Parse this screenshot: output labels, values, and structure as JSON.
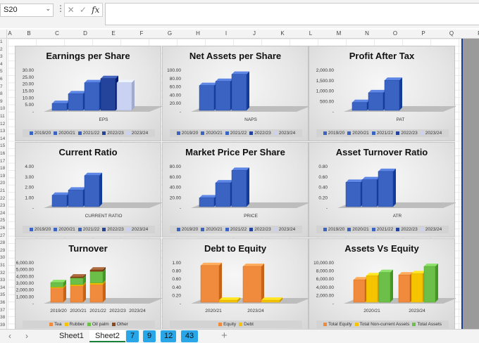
{
  "formula_bar": {
    "name_box": "S20",
    "icons": [
      "cancel-icon",
      "enter-icon",
      "function-icon"
    ]
  },
  "columns": [
    "A",
    "B",
    "C",
    "D",
    "E",
    "F",
    "G",
    "H",
    "I",
    "J",
    "K",
    "L",
    "M",
    "N",
    "O",
    "P",
    "Q",
    "R"
  ],
  "rows": [
    "1",
    "2",
    "3",
    "4",
    "5",
    "6",
    "7",
    "8",
    "9",
    "10",
    "11",
    "12",
    "13",
    "14",
    "15",
    "16",
    "17",
    "18",
    "19",
    "20",
    "21",
    "22",
    "23",
    "24",
    "25",
    "26",
    "27",
    "28",
    "29",
    "30",
    "31",
    "32",
    "33",
    "34",
    "35",
    "36",
    "37",
    "38",
    "39"
  ],
  "tabs": {
    "sheets": [
      "Sheet1",
      "Sheet2"
    ],
    "active": "Sheet2",
    "colored": [
      "7",
      "9",
      "12",
      "43"
    ]
  },
  "colors": {
    "blue": "#3a63c2",
    "blue_dark": "#24449c",
    "blue_light": "#c9d2f2",
    "orange": "#f08a3c",
    "yellow": "#f5c300",
    "green": "#6cc04a",
    "brown": "#8c4a1e"
  },
  "chart_data": [
    {
      "type": "bar",
      "title": "Earnings per Share",
      "category": "EPS",
      "ticks": [
        "30.00",
        "25.00",
        "20.00",
        "15.00",
        "10.00",
        "5.00",
        "-"
      ],
      "ylim": [
        0,
        30
      ],
      "series": [
        {
          "name": "2019/20",
          "values": [
            5
          ]
        },
        {
          "name": "2020/21",
          "values": [
            12
          ]
        },
        {
          "name": "2021/22",
          "values": [
            20
          ]
        },
        {
          "name": "2022/23",
          "values": [
            23
          ]
        },
        {
          "name": "2023/24",
          "values": [
            20
          ]
        }
      ]
    },
    {
      "type": "bar",
      "title": "Net Assets per Share",
      "category": "NAPS",
      "ticks": [
        "100.00",
        "80.00",
        "60.00",
        "40.00",
        "20.00",
        "-"
      ],
      "ylim": [
        0,
        100
      ],
      "series": [
        {
          "name": "2019/20",
          "values": [
            60
          ]
        },
        {
          "name": "2020/21",
          "values": [
            70
          ]
        },
        {
          "name": "2021/22",
          "values": [
            87
          ]
        },
        {
          "name": "2022/23",
          "values": [
            0
          ]
        },
        {
          "name": "2023/24",
          "values": [
            0
          ]
        }
      ]
    },
    {
      "type": "bar",
      "title": "Profit After Tax",
      "category": "PAT",
      "ticks": [
        "2,000.00",
        "1,500.00",
        "1,000.00",
        "500.00",
        "-"
      ],
      "ylim": [
        0,
        2000
      ],
      "series": [
        {
          "name": "2019/20",
          "values": [
            380
          ]
        },
        {
          "name": "2020/21",
          "values": [
            850
          ]
        },
        {
          "name": "2021/22",
          "values": [
            1450
          ]
        },
        {
          "name": "2022/23",
          "values": [
            0
          ]
        },
        {
          "name": "2023/24",
          "values": [
            0
          ]
        }
      ]
    },
    {
      "type": "bar",
      "title": "Current Ratio",
      "category": "CURRENT RATIO",
      "ticks": [
        "4.00",
        "3.00",
        "2.00",
        "1.00",
        "-"
      ],
      "ylim": [
        0,
        4
      ],
      "series": [
        {
          "name": "2019/20",
          "values": [
            1.1
          ]
        },
        {
          "name": "2020/21",
          "values": [
            1.6
          ]
        },
        {
          "name": "2021/22",
          "values": [
            3.0
          ]
        },
        {
          "name": "2022/23",
          "values": [
            0
          ]
        },
        {
          "name": "2023/24",
          "values": [
            0
          ]
        }
      ]
    },
    {
      "type": "bar",
      "title": "Market Price Per Share",
      "category": "PRICE",
      "ticks": [
        "80.00",
        "60.00",
        "40.00",
        "20.00",
        "-"
      ],
      "ylim": [
        0,
        80
      ],
      "series": [
        {
          "name": "2019/20",
          "values": [
            17
          ]
        },
        {
          "name": "2020/21",
          "values": [
            46
          ]
        },
        {
          "name": "2021/22",
          "values": [
            70
          ]
        },
        {
          "name": "2022/23",
          "values": [
            0
          ]
        },
        {
          "name": "2023/24",
          "values": [
            0
          ]
        }
      ]
    },
    {
      "type": "bar",
      "title": "Asset Turnover Ratio",
      "category": "ATR",
      "ticks": [
        "0.80",
        "0.60",
        "0.40",
        "0.20",
        "-"
      ],
      "ylim": [
        0,
        0.8
      ],
      "series": [
        {
          "name": "2019/20",
          "values": [
            0.47
          ]
        },
        {
          "name": "2020/21",
          "values": [
            0.52
          ]
        },
        {
          "name": "2021/22",
          "values": [
            0.68
          ]
        },
        {
          "name": "2022/23",
          "values": [
            0
          ]
        },
        {
          "name": "2023/24",
          "values": [
            0
          ]
        }
      ]
    },
    {
      "type": "stacked-bar",
      "title": "Turnover",
      "categories": [
        "2019/20",
        "2020/21",
        "2021/22",
        "2022/23",
        "2023/24"
      ],
      "ticks": [
        "6,000.00",
        "5,000.00",
        "4,000.00",
        "3,000.00",
        "2,000.00",
        "1,000.00",
        "-"
      ],
      "ylim": [
        0,
        6000
      ],
      "series": [
        {
          "name": "Tea",
          "values": [
            2100,
            2400,
            2600,
            0,
            0
          ]
        },
        {
          "name": "Rubber",
          "values": [
            150,
            200,
            250,
            0,
            0
          ]
        },
        {
          "name": "Oil palm",
          "values": [
            650,
            1000,
            1700,
            0,
            0
          ]
        },
        {
          "name": "Other",
          "values": [
            0,
            120,
            200,
            0,
            0
          ]
        }
      ]
    },
    {
      "type": "bar",
      "title": "Debt to Equity",
      "categories": [
        "2020/21",
        "2023/24"
      ],
      "ticks": [
        "1.00",
        "0.80",
        "0.60",
        "0.40",
        "0.20",
        "-"
      ],
      "ylim": [
        0,
        1
      ],
      "series": [
        {
          "name": "Equity",
          "values": [
            0.9,
            0.88
          ]
        },
        {
          "name": "Debt",
          "values": [
            0.05,
            0.05
          ]
        }
      ]
    },
    {
      "type": "bar",
      "title": "Assets Vs Equity",
      "categories": [
        "2020/21",
        "2023/24"
      ],
      "ticks": [
        "10,000.00",
        "8,000.00",
        "6,000.00",
        "4,000.00",
        "2,000.00",
        "-"
      ],
      "ylim": [
        0,
        10000
      ],
      "series": [
        {
          "name": "Total Equity",
          "values": [
            5500,
            6700
          ]
        },
        {
          "name": "Total Non-current Assets",
          "values": [
            6500,
            7000
          ]
        },
        {
          "name": "Total Assets",
          "values": [
            7300,
            8800
          ]
        }
      ]
    }
  ]
}
